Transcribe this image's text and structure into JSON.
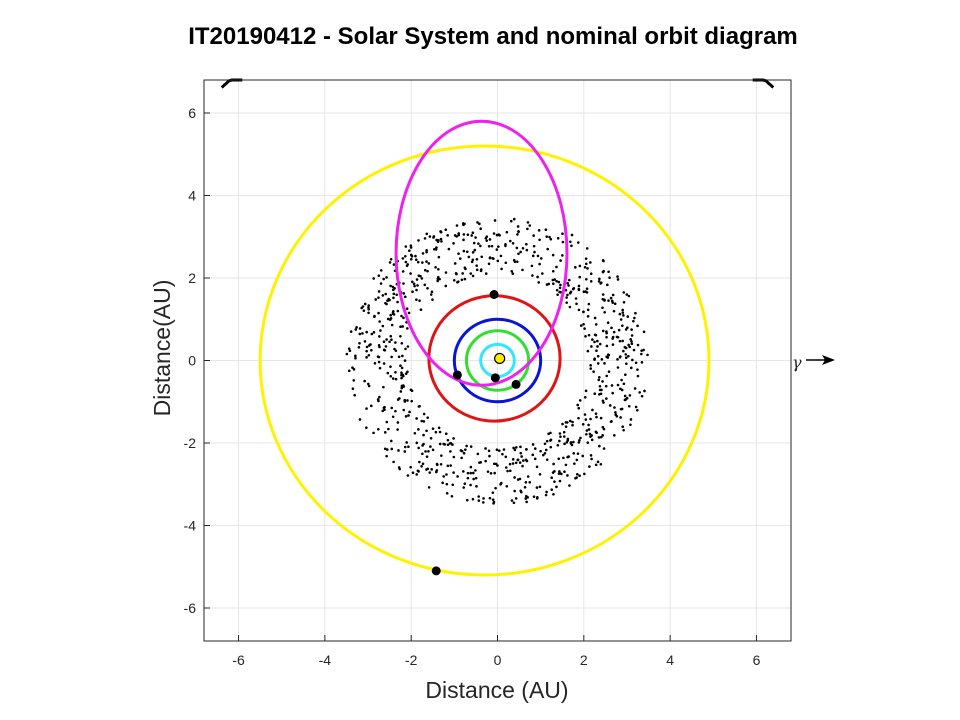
{
  "title": "IT20190412 - Solar System and nominal orbit diagram",
  "x_axis_label": "Distance (AU)",
  "y_axis_label": "Distance(AU)",
  "gamma_symbol": "γ",
  "chart_data": {
    "type": "orbit-diagram",
    "xlim": [
      -6.8,
      6.8
    ],
    "ylim": [
      -6.8,
      6.8
    ],
    "grid": true,
    "x_ticks": [
      -6,
      -4,
      -2,
      0,
      2,
      4,
      6
    ],
    "y_ticks": [
      -6,
      -4,
      -2,
      0,
      2,
      4,
      6
    ],
    "x_tick_labels": [
      "-6",
      "-4",
      "-2",
      "0",
      "2",
      "4",
      "6"
    ],
    "y_tick_labels": [
      "-6",
      "-4",
      "-2",
      "0",
      "2",
      "4",
      "6"
    ],
    "sun": {
      "x": 0.05,
      "y": 0.05,
      "color": "#ffee00"
    },
    "orbits": [
      {
        "cx": 0.0,
        "cy": 0.0,
        "rx": 0.39,
        "ry": 0.39,
        "color": "#33e6ff"
      },
      {
        "cx": 0.0,
        "cy": 0.0,
        "rx": 0.72,
        "ry": 0.72,
        "color": "#33dd33"
      },
      {
        "cx": 0.0,
        "cy": 0.0,
        "rx": 1.0,
        "ry": 1.0,
        "color": "#0a14d6"
      },
      {
        "cx": -0.07,
        "cy": 0.05,
        "rx": 1.52,
        "ry": 1.52,
        "color": "#e01414"
      },
      {
        "cx": -0.3,
        "cy": 0.0,
        "rx": 5.2,
        "ry": 5.2,
        "color": "#fff200"
      },
      {
        "cx": -0.37,
        "cy": 2.6,
        "rx": 1.98,
        "ry": 3.2,
        "color": "#ee22ee"
      }
    ],
    "planets": [
      {
        "x": -0.05,
        "y": -0.42
      },
      {
        "x": -0.93,
        "y": -0.35
      },
      {
        "x": 0.43,
        "y": -0.58
      },
      {
        "x": -0.08,
        "y": 1.6
      },
      {
        "x": -1.42,
        "y": -5.1
      }
    ],
    "asteroid_belt": {
      "inner": 2.1,
      "outer": 3.5,
      "count": 900,
      "color": "#000000"
    },
    "outer_arcs": [
      {
        "start_deg": 130,
        "end_deg": 134
      },
      {
        "start_deg": 46,
        "end_deg": 50
      }
    ],
    "outer_arc_radius": 9.2
  }
}
